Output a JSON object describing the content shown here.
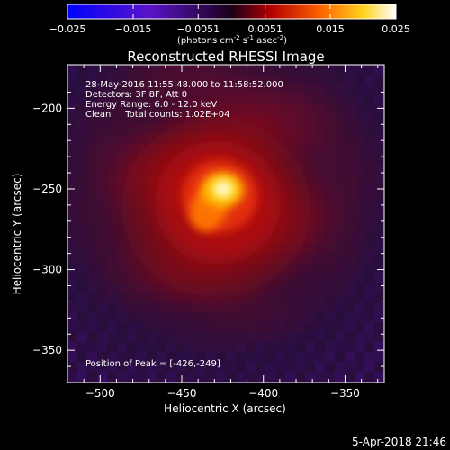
{
  "colorbar": {
    "ticks": [
      "-0.025",
      "-0.015",
      "-0.0051",
      "0.0051",
      "0.015",
      "0.025"
    ],
    "unit_main": "(photons cm",
    "unit_e1": "-2",
    "unit_mid1": " s",
    "unit_e2": "-1",
    "unit_mid2": " asec",
    "unit_e3": "-2",
    "unit_close": ")"
  },
  "chart_data": {
    "type": "heatmap",
    "title": "Reconstructed RHESSI Image",
    "xlabel": "Heliocentric X (arcsec)",
    "ylabel": "Heliocentric Y (arcsec)",
    "xlim": [
      -520,
      -326
    ],
    "ylim": [
      -370,
      -173
    ],
    "x_ticks": [
      -500,
      -450,
      -400,
      -350
    ],
    "y_ticks": [
      -200,
      -250,
      -300,
      -350
    ],
    "x_tick_labels": [
      "−500",
      "−450",
      "−400",
      "−350"
    ],
    "y_tick_labels": [
      "−200",
      "−250",
      "−300",
      "−350"
    ],
    "color_range": [
      -0.025,
      0.025
    ],
    "colormap": "blue-purple-red-yellow-white",
    "peak": [
      -426,
      -249
    ],
    "annotations": {
      "line1": "28-May-2016 11:55:48.000 to 11:58:52.000",
      "line2": "Detectors: 3F 8F, Att 0",
      "line3": "Energy Range: 6.0 - 12.0 keV",
      "line4": "Clean     Total counts: 1.02E+04",
      "peak_text": "Position of Peak = [-426,-249]"
    },
    "grid": false,
    "legend": "none"
  },
  "footer": {
    "timestamp": "5-Apr-2018 21:46"
  }
}
